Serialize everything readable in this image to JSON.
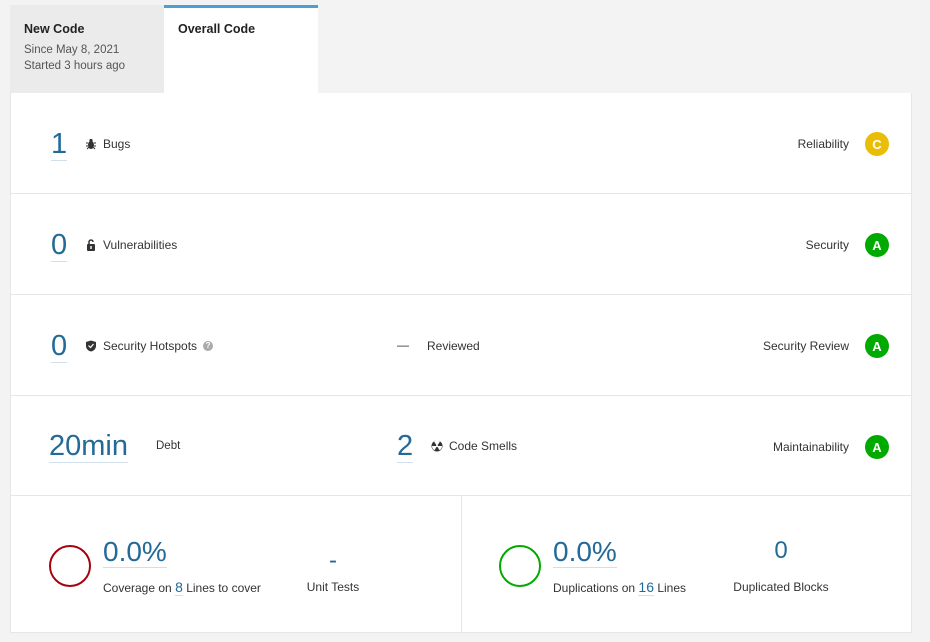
{
  "tabs": [
    {
      "title": "New Code",
      "line1": "Since May 8, 2021",
      "line2": "Started 3 hours ago",
      "active": false
    },
    {
      "title": "Overall Code",
      "active": true
    }
  ],
  "rows": {
    "bugs": {
      "value": "1",
      "label": "Bugs",
      "icon": "bug-icon",
      "rating_label": "Reliability",
      "rating": "C",
      "rating_color": "#eabe06"
    },
    "vulnerabilities": {
      "value": "0",
      "label": "Vulnerabilities",
      "icon": "lock-icon",
      "rating_label": "Security",
      "rating": "A",
      "rating_color": "#00aa00"
    },
    "hotspots": {
      "value": "0",
      "label": "Security Hotspots",
      "icon": "shield-icon",
      "reviewed_value": "—",
      "reviewed_label": "Reviewed",
      "rating_label": "Security Review",
      "rating": "A",
      "rating_color": "#00aa00"
    },
    "maintainability": {
      "debt_value": "20min",
      "debt_label": "Debt",
      "smells_value": "2",
      "smells_label": "Code Smells",
      "icon": "radiation-icon",
      "rating_label": "Maintainability",
      "rating": "A",
      "rating_color": "#00aa00"
    }
  },
  "coverage": {
    "value": "0.0%",
    "prefix": "Coverage on",
    "lines": "8",
    "suffix": "Lines to cover",
    "ring_color": "#a4030f",
    "unit_tests_value": "-",
    "unit_tests_label": "Unit Tests"
  },
  "duplications": {
    "value": "0.0%",
    "prefix": "Duplications on",
    "lines": "16",
    "suffix": "Lines",
    "ring_color": "#00aa00",
    "blocks_value": "0",
    "blocks_label": "Duplicated Blocks"
  }
}
